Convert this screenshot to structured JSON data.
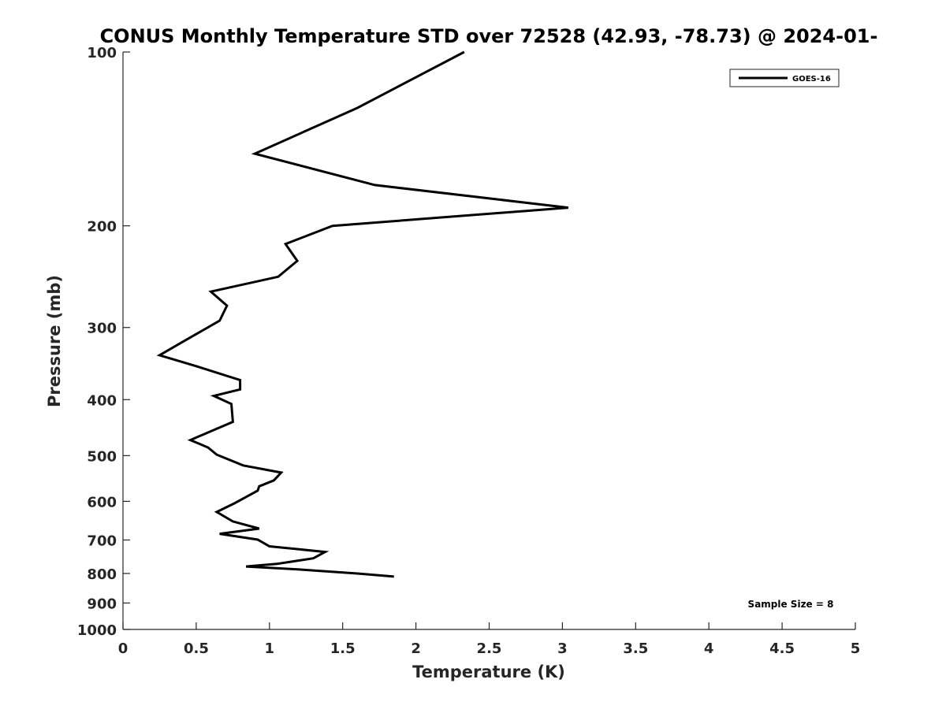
{
  "chart_data": {
    "type": "line",
    "title": "CONUS Monthly Temperature STD over 72528 (42.93, -78.73) @ 2024-01-",
    "xlabel": "Temperature (K)",
    "ylabel": "Pressure (mb)",
    "xlim": [
      0,
      5
    ],
    "ylim": [
      1000,
      100
    ],
    "y_scale": "log",
    "y_reversed": true,
    "grid": false,
    "x_ticks": [
      0,
      0.5,
      1,
      1.5,
      2,
      2.5,
      3,
      3.5,
      4,
      4.5,
      5
    ],
    "x_tick_labels": [
      "0",
      "0.5",
      "1",
      "1.5",
      "2",
      "2.5",
      "3",
      "3.5",
      "4",
      "4.5",
      "5"
    ],
    "y_ticks": [
      100,
      200,
      300,
      400,
      500,
      600,
      700,
      800,
      900,
      1000
    ],
    "y_tick_labels": [
      "100",
      "200",
      "300",
      "400",
      "500",
      "600",
      "700",
      "800",
      "900",
      "1000"
    ],
    "legend": {
      "placement": "top-right",
      "entries": [
        "GOES-16"
      ]
    },
    "annotation": "Sample Size = 8",
    "series": [
      {
        "name": "GOES-16",
        "color": "#000000",
        "points": [
          [
            2.33,
            100
          ],
          [
            1.6,
            125
          ],
          [
            0.9,
            150
          ],
          [
            1.72,
            170
          ],
          [
            3.04,
            186
          ],
          [
            1.43,
            200
          ],
          [
            1.11,
            215
          ],
          [
            1.19,
            230
          ],
          [
            1.06,
            245
          ],
          [
            0.6,
            260
          ],
          [
            0.71,
            275
          ],
          [
            0.66,
            292
          ],
          [
            0.48,
            310
          ],
          [
            0.34,
            325
          ],
          [
            0.25,
            335
          ],
          [
            0.5,
            350
          ],
          [
            0.8,
            370
          ],
          [
            0.8,
            384
          ],
          [
            0.62,
            394
          ],
          [
            0.74,
            407
          ],
          [
            0.75,
            437
          ],
          [
            0.58,
            456
          ],
          [
            0.46,
            470
          ],
          [
            0.58,
            484
          ],
          [
            0.64,
            498
          ],
          [
            0.82,
            520
          ],
          [
            1.08,
            535
          ],
          [
            1.03,
            552
          ],
          [
            0.93,
            565
          ],
          [
            0.92,
            575
          ],
          [
            0.76,
            605
          ],
          [
            0.64,
            626
          ],
          [
            0.75,
            650
          ],
          [
            0.93,
            669
          ],
          [
            0.66,
            683
          ],
          [
            0.92,
            699
          ],
          [
            1.0,
            718
          ],
          [
            1.38,
            734
          ],
          [
            1.3,
            753
          ],
          [
            1.05,
            770
          ],
          [
            0.84,
            778
          ],
          [
            1.23,
            788
          ],
          [
            1.6,
            800
          ],
          [
            1.85,
            810
          ]
        ]
      }
    ]
  }
}
